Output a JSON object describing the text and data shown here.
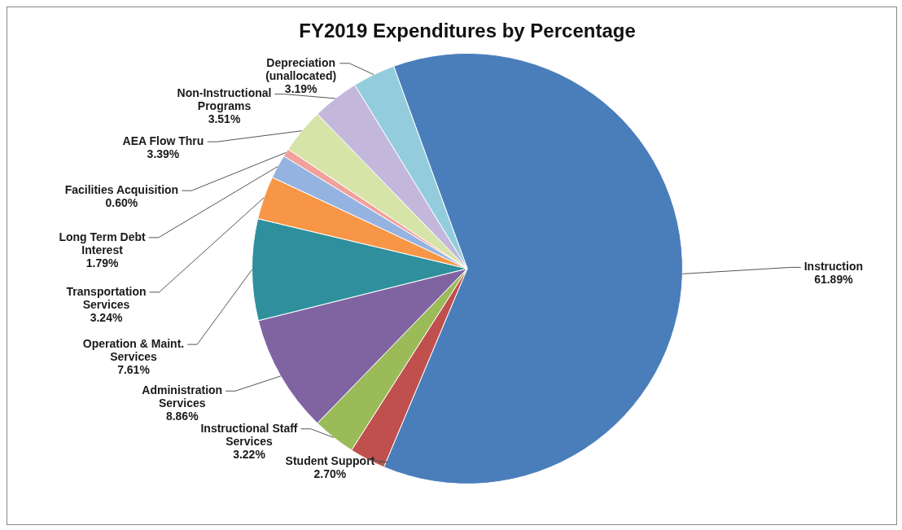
{
  "chart_data": {
    "type": "pie",
    "title": "FY2019 Expenditures by Percentage",
    "categories": [
      "Instruction",
      "Student Support",
      "Instructional Staff Services",
      "Administration Services",
      "Operation & Maint. Services",
      "Transportation Services",
      "Long Term Debt Interest",
      "Facilities Acquisition",
      "AEA Flow Thru",
      "Non-Instructional Programs",
      "Depreciation (unallocated)"
    ],
    "values": [
      61.89,
      2.7,
      3.22,
      8.86,
      7.61,
      3.24,
      1.79,
      0.6,
      3.39,
      3.51,
      3.19
    ],
    "value_labels": [
      "61.89%",
      "2.70%",
      "3.22%",
      "8.86%",
      "7.61%",
      "3.24%",
      "1.79%",
      "0.60%",
      "3.39%",
      "3.51%",
      "3.19%"
    ],
    "colors": [
      "#4a7ebb",
      "#c0504d",
      "#9bbb59",
      "#8064a2",
      "#2f8f9d",
      "#f79646",
      "#95b3e0",
      "#f2a09a",
      "#d7e4a8",
      "#c3b8dc",
      "#93cddd"
    ],
    "legend": false
  }
}
